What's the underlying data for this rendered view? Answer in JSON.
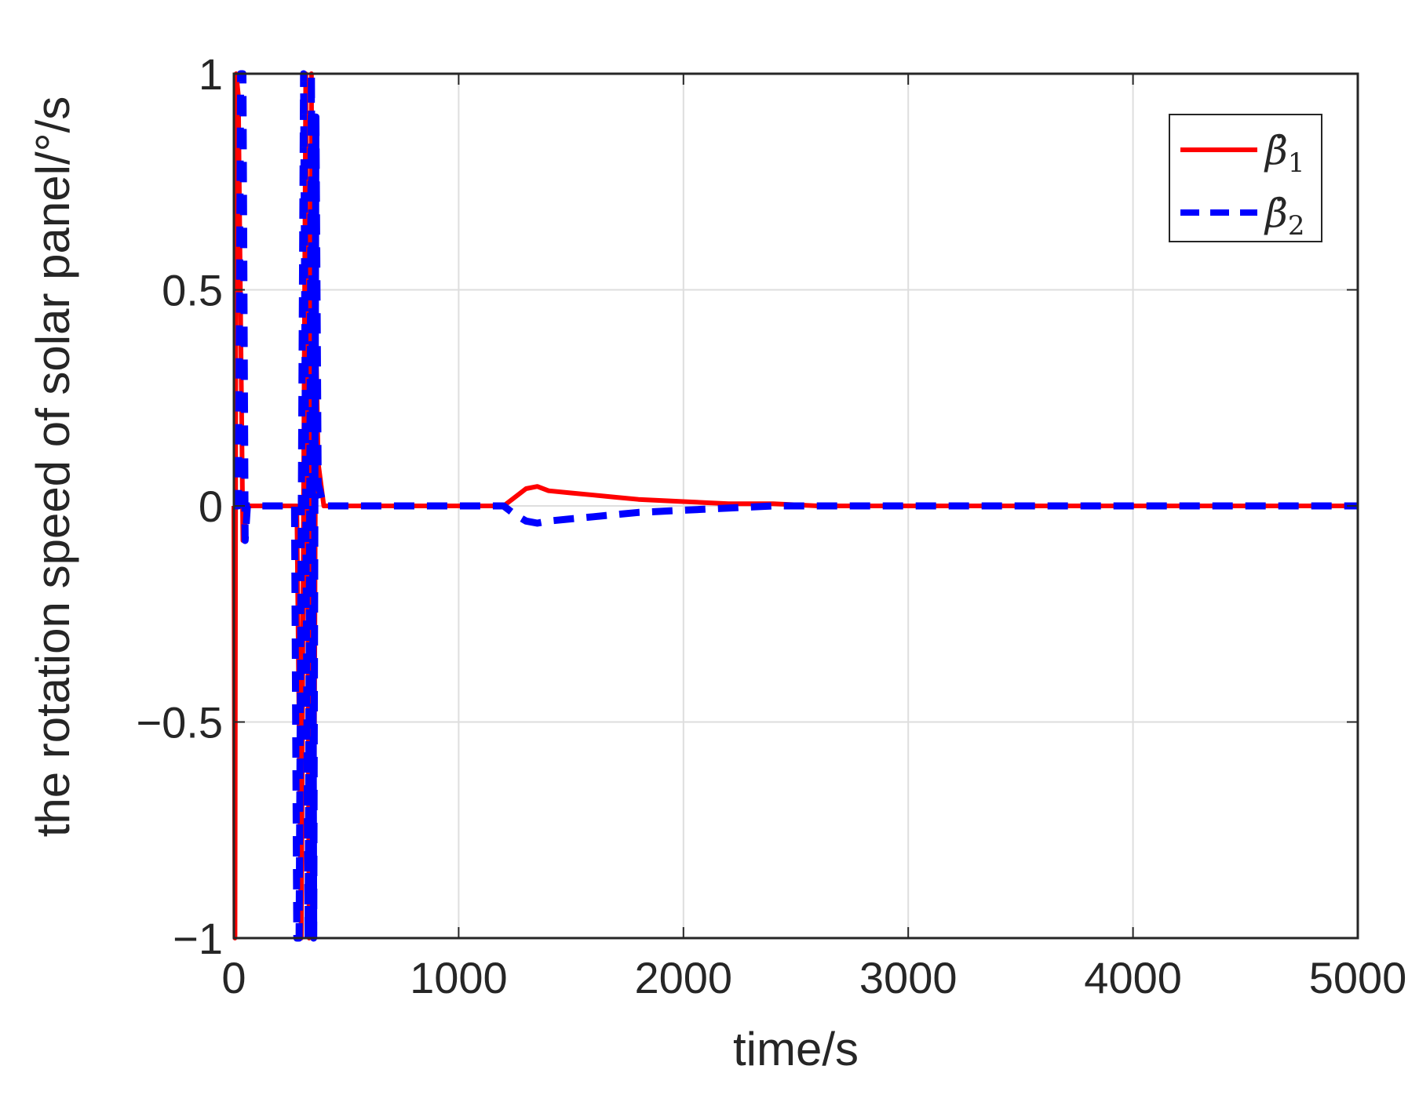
{
  "chart_data": {
    "type": "line",
    "xlabel": "time/s",
    "ylabel": "the rotation speed of solar panel/°/s",
    "xlim": [
      0,
      5000
    ],
    "ylim": [
      -1,
      1
    ],
    "xticks": [
      0,
      1000,
      2000,
      3000,
      4000,
      5000
    ],
    "xtick_labels": [
      "0",
      "1000",
      "2000",
      "3000",
      "4000",
      "5000"
    ],
    "yticks": [
      -1,
      -0.5,
      0,
      0.5,
      1
    ],
    "ytick_labels": [
      "−1",
      "−0.5",
      "0",
      "0.5",
      "1"
    ],
    "grid": true,
    "legend_position": "top-right",
    "series": [
      {
        "name": "β̇1",
        "legend_symbol": "β̇",
        "legend_subscript": "1",
        "color": "#ff0000",
        "style": "solid",
        "x": [
          0,
          5,
          10,
          20,
          40,
          60,
          80,
          100,
          200,
          280,
          300,
          320,
          335,
          345,
          355,
          365,
          375,
          400,
          600,
          900,
          1200,
          1250,
          1300,
          1350,
          1400,
          1500,
          1600,
          1700,
          1800,
          2000,
          2200,
          2400,
          2600,
          2800,
          3000,
          3200,
          3400,
          3600,
          3800,
          4000,
          4200,
          4400,
          4600,
          4800,
          5000
        ],
        "y": [
          0,
          -1,
          1,
          0.95,
          -0.08,
          0,
          0,
          0,
          0,
          0,
          -1,
          1,
          -1,
          1,
          -1,
          0.4,
          0.1,
          0,
          0,
          0,
          0,
          0.02,
          0.04,
          0.045,
          0.035,
          0.03,
          0.025,
          0.02,
          0.015,
          0.01,
          0.005,
          0.005,
          0,
          0,
          0,
          0,
          0,
          0,
          0,
          0,
          0,
          0,
          0,
          0,
          0
        ]
      },
      {
        "name": "β̇2",
        "legend_symbol": "β̇",
        "legend_subscript": "2",
        "color": "#0000ff",
        "style": "dashed",
        "x": [
          0,
          20,
          30,
          40,
          50,
          60,
          80,
          100,
          200,
          270,
          280,
          290,
          310,
          330,
          345,
          355,
          365,
          375,
          400,
          600,
          900,
          1200,
          1250,
          1300,
          1350,
          1400,
          1500,
          1600,
          1700,
          1800,
          2000,
          2200,
          2400,
          2600,
          2800,
          3000,
          3200,
          3400,
          3600,
          3800,
          4000,
          4200,
          4400,
          4600,
          4800,
          5000
        ],
        "y": [
          0,
          0,
          1,
          1,
          -0.08,
          0,
          0,
          0,
          0,
          0,
          -1,
          -1,
          1,
          -1,
          1,
          -1,
          0.9,
          0.05,
          0,
          0,
          0,
          0,
          -0.02,
          -0.035,
          -0.04,
          -0.035,
          -0.03,
          -0.025,
          -0.02,
          -0.015,
          -0.01,
          -0.005,
          0,
          0,
          0,
          0,
          0,
          0,
          0,
          0,
          0,
          0,
          0,
          0,
          0,
          0
        ]
      }
    ]
  }
}
